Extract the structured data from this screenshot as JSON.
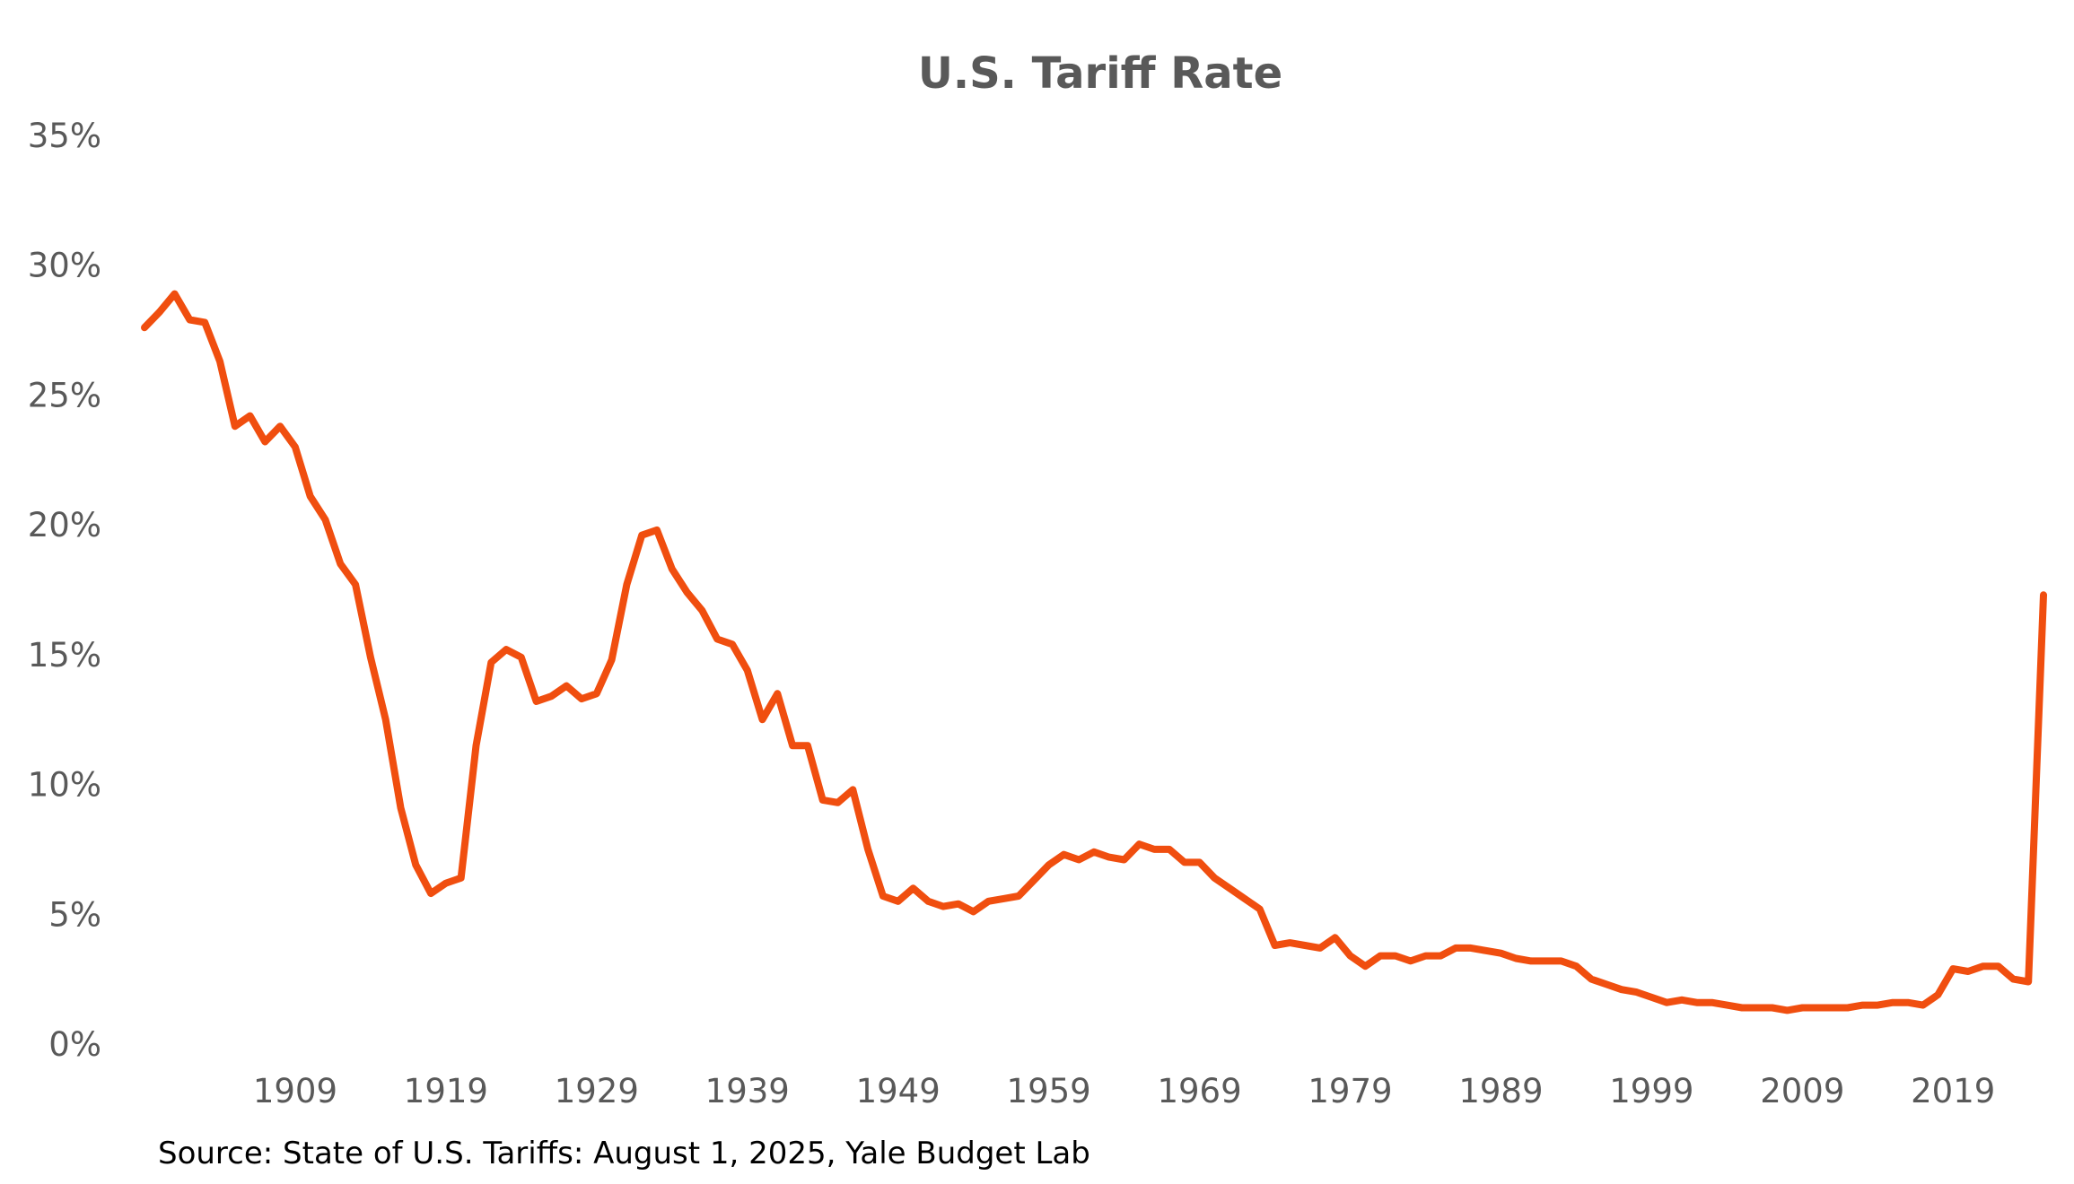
{
  "chart_data": {
    "type": "line",
    "title": "U.S. Tariff Rate",
    "xlabel": "",
    "ylabel": "",
    "source": "Source: State of U.S. Tariffs: August 1, 2025, Yale Budget Lab",
    "ylim": [
      0,
      35
    ],
    "xlim": [
      1899,
      2025
    ],
    "grid": false,
    "legend": "none",
    "line_color": "#F04E0F",
    "text_color": "#595959",
    "y_ticks": [
      0,
      5,
      10,
      15,
      20,
      25,
      30,
      35
    ],
    "y_tick_labels": [
      "0%",
      "5%",
      "10%",
      "15%",
      "20%",
      "25%",
      "30%",
      "35%"
    ],
    "x_ticks": [
      1909,
      1919,
      1929,
      1939,
      1949,
      1959,
      1969,
      1979,
      1989,
      1999,
      2009,
      2019
    ],
    "x_tick_labels": [
      "1909",
      "1919",
      "1929",
      "1939",
      "1949",
      "1959",
      "1969",
      "1979",
      "1989",
      "1999",
      "2009",
      "2019"
    ],
    "series": [
      {
        "name": "U.S. Tariff Rate",
        "start_year": 1899,
        "values": [
          27.6,
          28.2,
          28.9,
          27.9,
          27.8,
          26.3,
          23.8,
          24.2,
          23.2,
          23.8,
          23.0,
          21.1,
          20.2,
          18.5,
          17.7,
          14.9,
          12.5,
          9.1,
          6.9,
          5.8,
          6.2,
          6.4,
          11.5,
          14.7,
          15.2,
          14.9,
          13.2,
          13.4,
          13.8,
          13.3,
          13.5,
          14.8,
          17.7,
          19.6,
          19.8,
          18.3,
          17.4,
          16.7,
          15.6,
          15.4,
          14.4,
          12.5,
          13.5,
          11.5,
          11.5,
          9.4,
          9.3,
          9.8,
          7.5,
          5.7,
          5.5,
          6.0,
          5.5,
          5.3,
          5.4,
          5.1,
          5.5,
          5.6,
          5.7,
          6.3,
          6.9,
          7.3,
          7.1,
          7.4,
          7.2,
          7.1,
          7.7,
          7.5,
          7.5,
          7.0,
          7.0,
          6.4,
          6.0,
          5.6,
          5.2,
          3.8,
          3.9,
          3.8,
          3.7,
          4.1,
          3.4,
          3.0,
          3.4,
          3.4,
          3.2,
          3.4,
          3.4,
          3.7,
          3.7,
          3.6,
          3.5,
          3.3,
          3.2,
          3.2,
          3.2,
          3.0,
          2.5,
          2.3,
          2.1,
          2.0,
          1.8,
          1.6,
          1.7,
          1.6,
          1.6,
          1.5,
          1.4,
          1.4,
          1.4,
          1.3,
          1.4,
          1.4,
          1.4,
          1.4,
          1.5,
          1.5,
          1.6,
          1.6,
          1.5,
          1.9,
          2.9,
          2.8,
          3.0,
          3.0,
          2.5,
          2.4,
          17.3
        ]
      }
    ]
  }
}
